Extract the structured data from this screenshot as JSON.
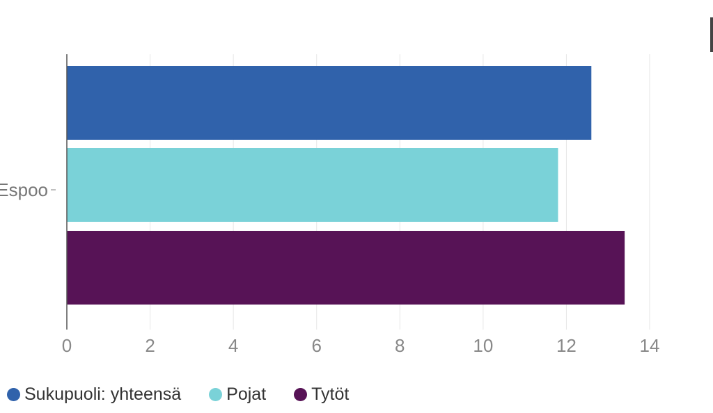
{
  "chart_data": {
    "type": "bar",
    "orientation": "horizontal",
    "categories": [
      "Espoo"
    ],
    "series": [
      {
        "name": "Sukupuoli: yhteensä",
        "color": "#3062ab",
        "values": [
          12.6
        ]
      },
      {
        "name": "Pojat",
        "color": "#7ad2d8",
        "values": [
          11.8
        ]
      },
      {
        "name": "Tytöt",
        "color": "#571356",
        "values": [
          13.4
        ]
      }
    ],
    "x_ticks": [
      "0",
      "2",
      "4",
      "6",
      "8",
      "10",
      "12",
      "14"
    ],
    "xlim": [
      0,
      14
    ],
    "grid": true,
    "legend_position": "bottom-left"
  }
}
